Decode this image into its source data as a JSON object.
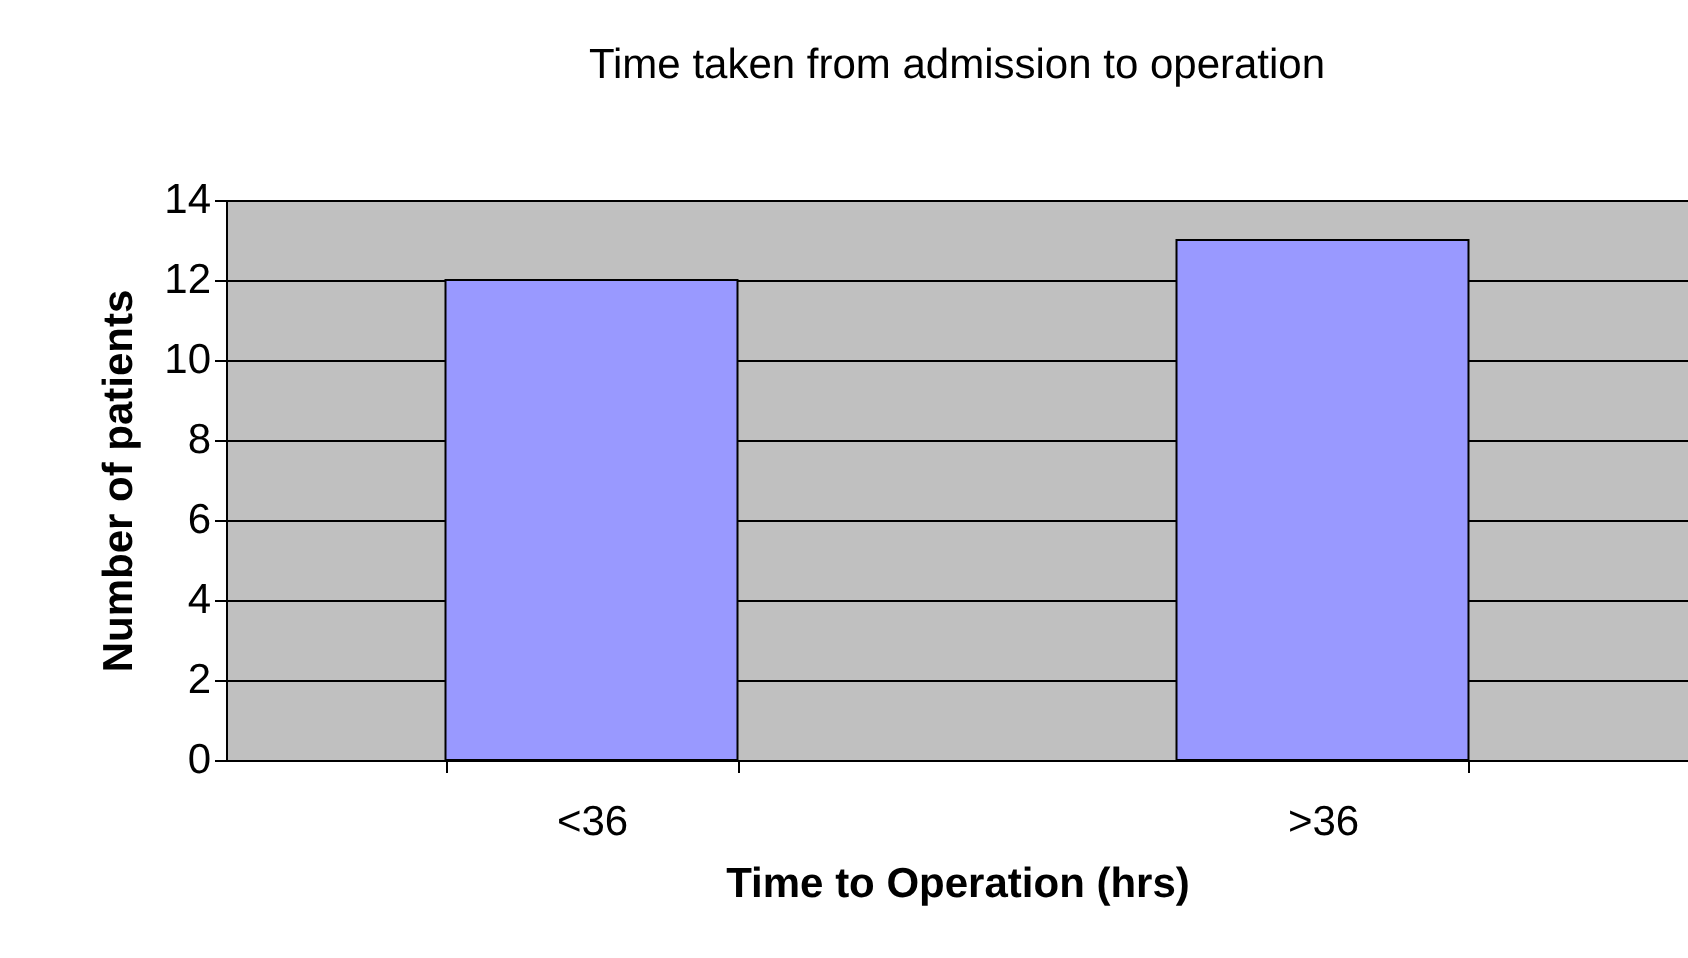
{
  "chart_data": {
    "type": "bar",
    "title": "Time taken from admission to operation",
    "xlabel": "Time to Operation (hrs)",
    "ylabel": "Number of patients",
    "categories": [
      "<36",
      ">36"
    ],
    "values": [
      12,
      13
    ],
    "color": "#9999ff",
    "ylim": [
      0,
      14
    ],
    "yticks": [
      0,
      2,
      4,
      6,
      8,
      10,
      12,
      14
    ],
    "grid": "y"
  }
}
